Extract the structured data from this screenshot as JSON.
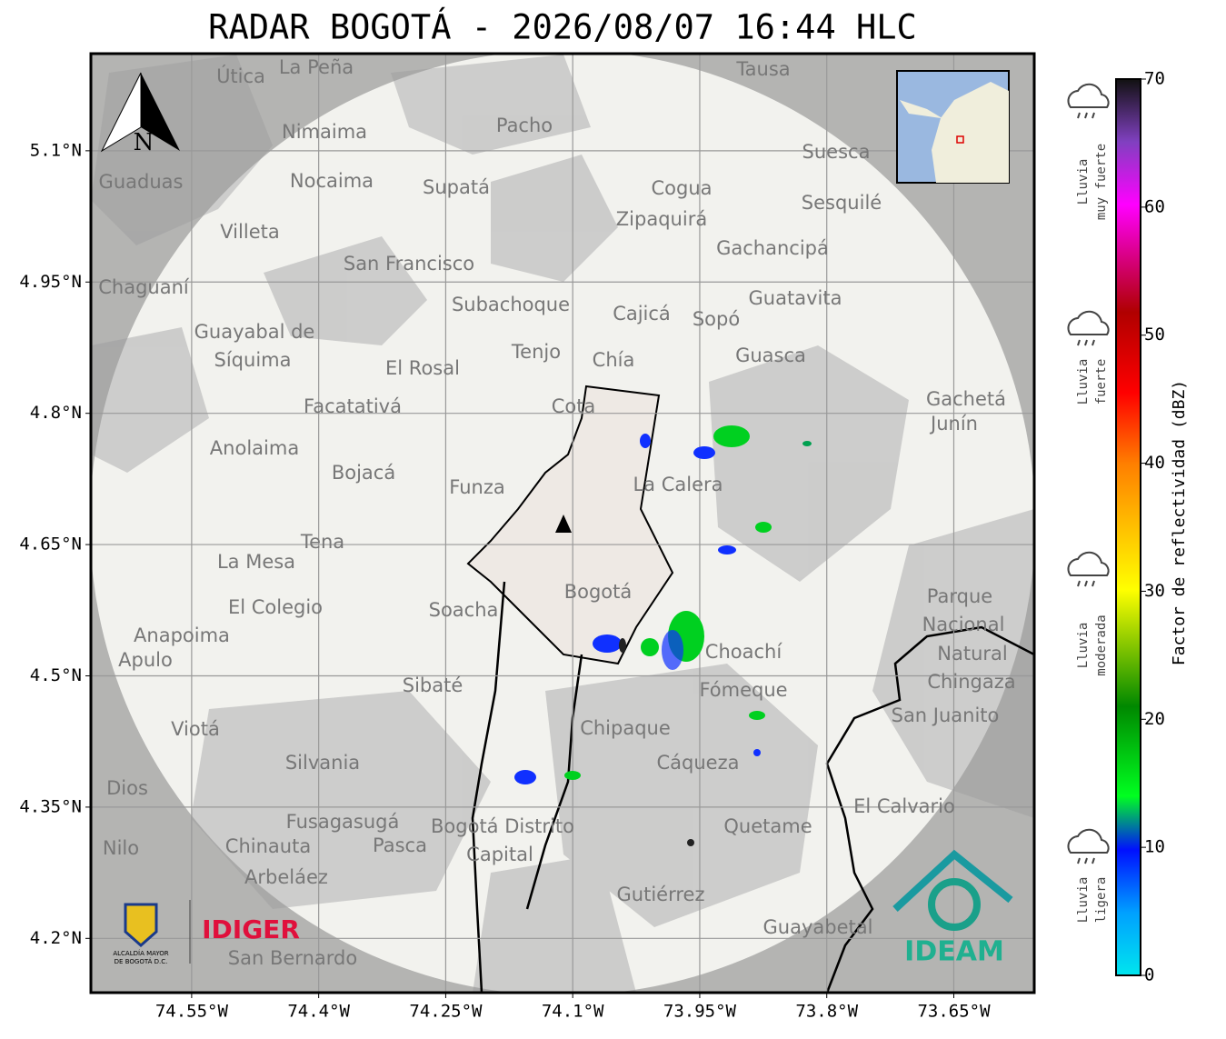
{
  "title": "RADAR BOGOTÁ - 2026/08/07 16:44 HLC",
  "map": {
    "xlim": [
      -74.669,
      -73.555
    ],
    "ylim": [
      4.138,
      5.211
    ],
    "grid": true,
    "north_label": "N",
    "xticks": [
      {
        "value": -74.55,
        "label": "74.55°W"
      },
      {
        "value": -74.4,
        "label": "74.4°W"
      },
      {
        "value": -74.25,
        "label": "74.25°W"
      },
      {
        "value": -74.1,
        "label": "74.1°W"
      },
      {
        "value": -73.95,
        "label": "73.95°W"
      },
      {
        "value": -73.8,
        "label": "73.8°W"
      },
      {
        "value": -73.65,
        "label": "73.65°W"
      }
    ],
    "yticks": [
      {
        "value": 5.1,
        "label": "5.1°N"
      },
      {
        "value": 4.95,
        "label": "4.95°N"
      },
      {
        "value": 4.8,
        "label": "4.8°N"
      },
      {
        "value": 4.65,
        "label": "4.65°N"
      },
      {
        "value": 4.5,
        "label": "4.5°N"
      },
      {
        "value": 4.35,
        "label": "4.35°N"
      },
      {
        "value": 4.2,
        "label": "4.2°N"
      }
    ],
    "places": [
      "La Peña",
      "Útica",
      "Tausa",
      "Pacho",
      "Nimaima",
      "Suesca",
      "Guaduas",
      "Nocaima",
      "Supatá",
      "Cogua",
      "Zipaquirá",
      "Sesquilé",
      "Villeta",
      "Gachancipá",
      "San Francisco",
      "Chaguaní",
      "Guatavita",
      "Subachoque",
      "Cajicá",
      "Sopó",
      "Guayabal de",
      "Síquima",
      "Tenjo",
      "Chía",
      "Guasca",
      "El Rosal",
      "Cota",
      "Facatativá",
      "Gachetá",
      "Junín",
      "Anolaima",
      "Bojacá",
      "Funza",
      "La Calera",
      "Tena",
      "La Mesa",
      "Bogotá",
      "Soacha",
      "Parque",
      "Nacional",
      "Natural",
      "Chingaza",
      "El Colegio",
      "Anapoima",
      "Apulo",
      "Choachí",
      "Fómeque",
      "Sibaté",
      "San Juanito",
      "Viotá",
      "Chipaque",
      "Silvania",
      "Cáqueza",
      "Dios",
      "El Calvario",
      "Fusagasugá",
      "Bogotá Distrito",
      "Capital",
      "Quetame",
      "Pasca",
      "Chinauta",
      "Nilo",
      "Arbeláez",
      "Gutiérrez",
      "Guayabetal",
      "San Bernardo"
    ]
  },
  "colorbar": {
    "label": "Factor de reflectividad (dBZ)",
    "ylim": [
      0,
      70
    ],
    "ticks": [
      0,
      10,
      20,
      30,
      40,
      50,
      60,
      70
    ]
  },
  "legend": [
    [
      "Lluvia",
      "muy fuerte"
    ],
    [
      "Lluvia",
      "fuerte"
    ],
    [
      "Lluvia",
      "moderada"
    ],
    [
      "Lluvia",
      "ligera"
    ]
  ],
  "logos": {
    "alcaldia": [
      "ALCALDÍA MAYOR",
      "DE BOGOTÁ D.C."
    ],
    "idiger": "IDIGER",
    "ideam": "IDEAM"
  }
}
